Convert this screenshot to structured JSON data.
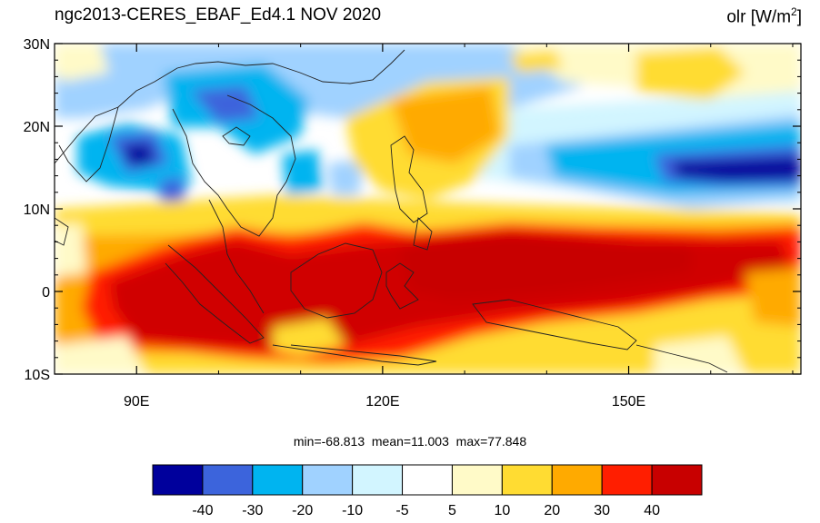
{
  "header": {
    "title": "ngc2013-CERES_EBAF_Ed4.1  NOV 2020",
    "variable": "olr [W/m",
    "variable_sup": "2",
    "variable_close": "]"
  },
  "map": {
    "region": {
      "lon_min": 80,
      "lon_max": 171,
      "lat_min": -10,
      "lat_max": 30
    },
    "lat_ticks": [
      {
        "value": 30,
        "label": "30N"
      },
      {
        "value": 20,
        "label": "20N"
      },
      {
        "value": 10,
        "label": "10N"
      },
      {
        "value": 0,
        "label": "0"
      },
      {
        "value": -10,
        "label": "10S"
      }
    ],
    "lon_ticks": [
      {
        "value": 90,
        "label": "90E"
      },
      {
        "value": 120,
        "label": "120E"
      },
      {
        "value": 150,
        "label": "150E"
      }
    ]
  },
  "stats": {
    "min_label": "min=",
    "min": "-68.813",
    "mean_label": "mean=",
    "mean": "11.003",
    "max_label": "max=",
    "max": "77.848"
  },
  "colorbar": {
    "colors": [
      "#00009c",
      "#3c64dc",
      "#00b4f0",
      "#a0d2ff",
      "#d2f5ff",
      "#ffffff",
      "#fffac8",
      "#ffdc32",
      "#ffaa00",
      "#ff1e00",
      "#c80000"
    ],
    "labels": [
      "-40",
      "-30",
      "-20",
      "-10",
      "-5",
      "5",
      "10",
      "20",
      "30",
      "40"
    ]
  }
}
